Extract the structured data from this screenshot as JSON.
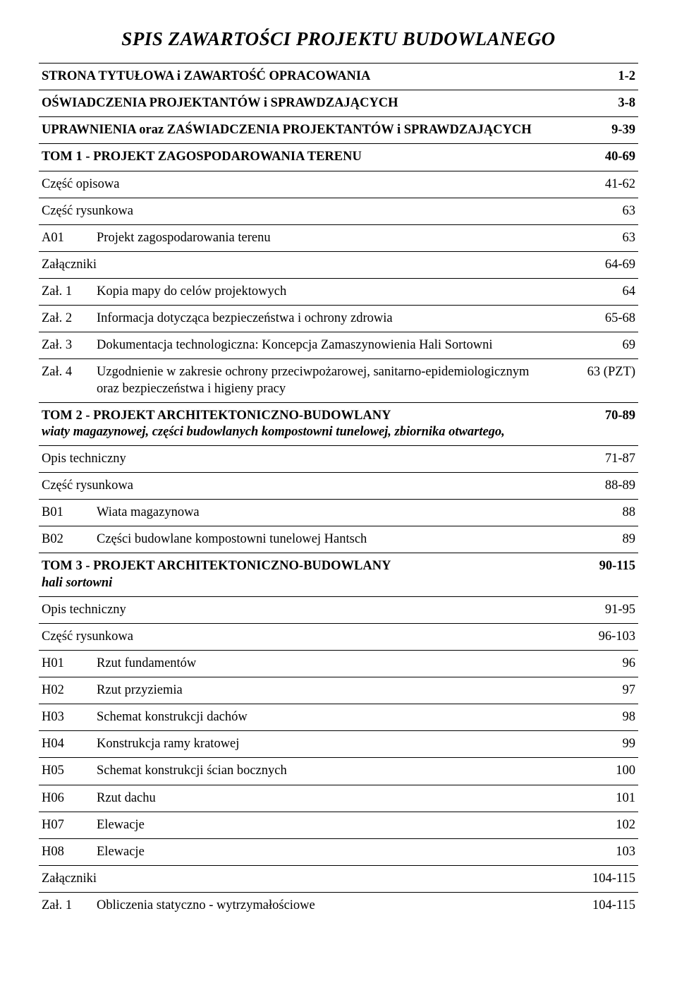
{
  "title": "SPIS ZAWARTOŚCI PROJEKTU BUDOWLANEGO",
  "rows": [
    {
      "label": "STRONA TYTUŁOWA i ZAWARTOŚĆ OPRACOWANIA",
      "pages": "1-2",
      "bold": true
    },
    {
      "label": "OŚWIADCZENIA PROJEKTANTÓW i SPRAWDZAJĄCYCH",
      "pages": "3-8",
      "bold": true
    },
    {
      "label": "UPRAWNIENIA oraz ZAŚWIADCZENIA PROJEKTANTÓW i SPRAWDZAJĄCYCH",
      "pages": "9-39",
      "bold": true
    },
    {
      "label": "TOM 1 - PROJEKT ZAGOSPODAROWANIA TERENU",
      "pages": "40-69",
      "bold": true
    },
    {
      "label": "Część opisowa",
      "pages": "41-62"
    },
    {
      "label": "Część rysunkowa",
      "pages": "63"
    },
    {
      "code": "A01",
      "label": "Projekt zagospodarowania terenu",
      "pages": "63"
    },
    {
      "label": "Załączniki",
      "pages": "64-69"
    },
    {
      "code": "Zał. 1",
      "label": "Kopia mapy do celów projektowych",
      "pages": "64"
    },
    {
      "code": "Zał. 2",
      "label": "Informacja dotycząca bezpieczeństwa i ochrony zdrowia",
      "pages": "65-68"
    },
    {
      "code": "Zał. 3",
      "label": "Dokumentacja technologiczna: Koncepcja Zamaszynowienia Hali Sortowni",
      "pages": "69"
    },
    {
      "code": "Zał. 4",
      "label": "Uzgodnienie w zakresie ochrony przeciwpożarowej, sanitarno-epidemiologicznym oraz bezpieczeństwa i higieny pracy",
      "pages": "63 (PZT)"
    },
    {
      "label_html": "<span class='bold'>TOM 2 - PROJEKT ARCHITEKTONICZNO-BUDOWLANY</span><br><span class='bold italic'>wiaty magazynowej, części budowlanych kompostowni tunelowej, zbiornika otwartego,</span>",
      "pages": "70-89",
      "bold_pages": true
    },
    {
      "label": "Opis techniczny",
      "pages": "71-87"
    },
    {
      "label": "Część rysunkowa",
      "pages": "88-89"
    },
    {
      "code": "B01",
      "label": "Wiata magazynowa",
      "pages": "88"
    },
    {
      "code": "B02",
      "label": "Części budowlane kompostowni tunelowej Hantsch",
      "pages": "89"
    },
    {
      "label_html": "<span class='bold'>TOM 3 - PROJEKT ARCHITEKTONICZNO-BUDOWLANY</span><br><span class='bold italic'>hali sortowni</span>",
      "pages": "90-115",
      "bold_pages": true
    },
    {
      "label": "Opis techniczny",
      "pages": "91-95"
    },
    {
      "label": "Część rysunkowa",
      "pages": "96-103"
    },
    {
      "code": "H01",
      "label": "Rzut fundamentów",
      "pages": "96"
    },
    {
      "code": "H02",
      "label": "Rzut przyziemia",
      "pages": "97"
    },
    {
      "code": "H03",
      "label": "Schemat konstrukcji dachów",
      "pages": "98"
    },
    {
      "code": "H04",
      "label": "Konstrukcja ramy kratowej",
      "pages": "99"
    },
    {
      "code": "H05",
      "label": "Schemat konstrukcji ścian bocznych",
      "pages": "100"
    },
    {
      "code": "H06",
      "label": "Rzut dachu",
      "pages": "101"
    },
    {
      "code": "H07",
      "label": "Elewacje",
      "pages": "102"
    },
    {
      "code": "H08",
      "label": "Elewacje",
      "pages": "103"
    },
    {
      "label": "Załączniki",
      "pages": "104-115"
    },
    {
      "code": "Zał. 1",
      "label": "Obliczenia statyczno - wytrzymałościowe",
      "pages": "104-115",
      "no_bottom": true
    }
  ]
}
